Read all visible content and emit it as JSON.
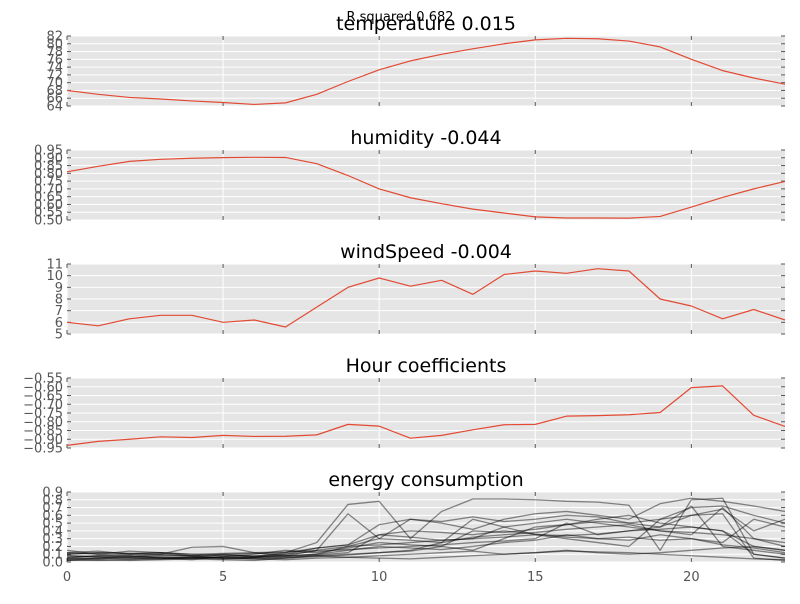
{
  "figure_title": "R squared 0.682",
  "colors": {
    "panel_background": "#e5e5e5",
    "grid": "#ffffff",
    "line": "#e24a33",
    "multi_line": "#000000",
    "tick_text": "#555555",
    "title_text": "#000000"
  },
  "chart_data": [
    {
      "type": "line",
      "title": "temperature 0.015",
      "x": [
        0,
        1,
        2,
        3,
        4,
        5,
        6,
        7,
        8,
        9,
        10,
        11,
        12,
        13,
        14,
        15,
        16,
        17,
        18,
        19,
        20,
        21,
        22,
        23
      ],
      "series": [
        {
          "values": [
            68.0,
            67.0,
            66.2,
            65.8,
            65.3,
            64.9,
            64.4,
            64.8,
            67.0,
            70.3,
            73.3,
            75.6,
            77.3,
            78.7,
            80.0,
            81.0,
            81.4,
            81.3,
            80.7,
            79.2,
            76.0,
            73.1,
            71.2,
            69.6
          ]
        }
      ],
      "xlim": [
        0,
        23
      ],
      "ylim": [
        64,
        82
      ],
      "xticks": [
        0,
        5,
        10,
        15,
        20
      ],
      "xtick_labels": [
        "",
        "",
        "",
        "",
        ""
      ],
      "yticks": [
        64,
        66,
        68,
        70,
        72,
        74,
        76,
        78,
        80,
        82
      ],
      "ytick_labels": [
        "64",
        "66",
        "68",
        "70",
        "72",
        "74",
        "76",
        "78",
        "80",
        "82"
      ],
      "grid": true
    },
    {
      "type": "line",
      "title": "humidity -0.044",
      "x": [
        0,
        1,
        2,
        3,
        4,
        5,
        6,
        7,
        8,
        9,
        10,
        11,
        12,
        13,
        14,
        15,
        16,
        17,
        18,
        19,
        20,
        21,
        22,
        23
      ],
      "series": [
        {
          "values": [
            0.81,
            0.845,
            0.877,
            0.89,
            0.897,
            0.901,
            0.903,
            0.902,
            0.862,
            0.786,
            0.7,
            0.643,
            0.605,
            0.57,
            0.545,
            0.52,
            0.513,
            0.513,
            0.512,
            0.523,
            0.583,
            0.645,
            0.7,
            0.748
          ]
        }
      ],
      "xlim": [
        0,
        23
      ],
      "ylim": [
        0.5,
        0.95
      ],
      "xticks": [
        0,
        5,
        10,
        15,
        20
      ],
      "xtick_labels": [
        "",
        "",
        "",
        "",
        ""
      ],
      "yticks": [
        0.5,
        0.55,
        0.6,
        0.65,
        0.7,
        0.75,
        0.8,
        0.85,
        0.9,
        0.95
      ],
      "ytick_labels": [
        "0.50",
        "0.55",
        "0.60",
        "0.65",
        "0.70",
        "0.75",
        "0.80",
        "0.85",
        "0.90",
        "0.95"
      ],
      "grid": true
    },
    {
      "type": "line",
      "title": "windSpeed -0.004",
      "x": [
        0,
        1,
        2,
        3,
        4,
        5,
        6,
        7,
        8,
        9,
        10,
        11,
        12,
        13,
        14,
        15,
        16,
        17,
        18,
        19,
        20,
        21,
        22,
        23
      ],
      "series": [
        {
          "values": [
            6.0,
            5.7,
            6.3,
            6.6,
            6.6,
            6.0,
            6.2,
            5.6,
            7.3,
            9.0,
            9.8,
            9.1,
            9.6,
            8.4,
            10.1,
            10.4,
            10.2,
            10.6,
            10.4,
            8.0,
            7.4,
            6.3,
            7.1,
            6.2
          ]
        }
      ],
      "xlim": [
        0,
        23
      ],
      "ylim": [
        5,
        11
      ],
      "xticks": [
        0,
        5,
        10,
        15,
        20
      ],
      "xtick_labels": [
        "",
        "",
        "",
        "",
        ""
      ],
      "yticks": [
        5,
        6,
        7,
        8,
        9,
        10,
        11
      ],
      "ytick_labels": [
        "5",
        "6",
        "7",
        "8",
        "9",
        "10",
        "11"
      ],
      "grid": true
    },
    {
      "type": "line",
      "title": "Hour coefficients",
      "x": [
        0,
        1,
        2,
        3,
        4,
        5,
        6,
        7,
        8,
        9,
        10,
        11,
        12,
        13,
        14,
        15,
        16,
        17,
        18,
        19,
        20,
        21,
        22,
        23
      ],
      "series": [
        {
          "values": [
            -0.935,
            -0.912,
            -0.9,
            -0.886,
            -0.89,
            -0.878,
            -0.884,
            -0.883,
            -0.875,
            -0.815,
            -0.825,
            -0.894,
            -0.878,
            -0.846,
            -0.817,
            -0.815,
            -0.768,
            -0.765,
            -0.76,
            -0.747,
            -0.605,
            -0.595,
            -0.763,
            -0.827
          ]
        }
      ],
      "xlim": [
        0,
        23
      ],
      "ylim": [
        -0.95,
        -0.55
      ],
      "xticks": [
        0,
        5,
        10,
        15,
        20
      ],
      "xtick_labels": [
        "",
        "",
        "",
        "",
        ""
      ],
      "yticks": [
        -0.95,
        -0.9,
        -0.85,
        -0.8,
        -0.75,
        -0.7,
        -0.65,
        -0.6,
        -0.55
      ],
      "ytick_labels": [
        "−0.95",
        "−0.90",
        "−0.85",
        "−0.80",
        "−0.75",
        "−0.70",
        "−0.65",
        "−0.60",
        "−0.55"
      ],
      "grid": true
    },
    {
      "type": "line",
      "title": "energy consumption",
      "x": [
        0,
        1,
        2,
        3,
        4,
        5,
        6,
        7,
        8,
        9,
        10,
        11,
        12,
        13,
        14,
        15,
        16,
        17,
        18,
        19,
        20,
        21,
        22,
        23
      ],
      "series": [
        {
          "values": [
            0.1,
            0.12,
            0.11,
            0.1,
            0.08,
            0.1,
            0.07,
            0.12,
            0.25,
            0.74,
            0.78,
            0.3,
            0.65,
            0.81,
            0.81,
            0.8,
            0.78,
            0.77,
            0.73,
            0.15,
            0.8,
            0.82,
            0.1,
            0.05
          ]
        },
        {
          "values": [
            0.05,
            0.08,
            0.07,
            0.1,
            0.19,
            0.2,
            0.12,
            0.08,
            0.15,
            0.62,
            0.3,
            0.55,
            0.5,
            0.42,
            0.55,
            0.62,
            0.65,
            0.6,
            0.55,
            0.75,
            0.82,
            0.78,
            0.72,
            0.65
          ]
        },
        {
          "values": [
            0.15,
            0.1,
            0.14,
            0.12,
            0.08,
            0.05,
            0.06,
            0.1,
            0.18,
            0.22,
            0.48,
            0.55,
            0.52,
            0.58,
            0.52,
            0.55,
            0.6,
            0.58,
            0.5,
            0.45,
            0.6,
            0.68,
            0.4,
            0.55
          ]
        },
        {
          "values": [
            0.02,
            0.05,
            0.08,
            0.05,
            0.03,
            0.07,
            0.1,
            0.15,
            0.12,
            0.18,
            0.25,
            0.22,
            0.2,
            0.15,
            0.3,
            0.45,
            0.48,
            0.52,
            0.5,
            0.55,
            0.6,
            0.62,
            0.05,
            0.02
          ]
        },
        {
          "values": [
            0.12,
            0.14,
            0.1,
            0.12,
            0.1,
            0.08,
            0.07,
            0.08,
            0.1,
            0.2,
            0.3,
            0.28,
            0.25,
            0.32,
            0.35,
            0.38,
            0.42,
            0.45,
            0.48,
            0.4,
            0.35,
            0.7,
            0.3,
            0.2
          ]
        },
        {
          "values": [
            0.08,
            0.06,
            0.05,
            0.04,
            0.06,
            0.09,
            0.08,
            0.1,
            0.14,
            0.16,
            0.18,
            0.2,
            0.22,
            0.25,
            0.27,
            0.3,
            0.5,
            0.35,
            0.4,
            0.45,
            0.72,
            0.2,
            0.15,
            0.1
          ]
        },
        {
          "values": [
            0.05,
            0.04,
            0.06,
            0.08,
            0.07,
            0.05,
            0.06,
            0.07,
            0.09,
            0.12,
            0.35,
            0.4,
            0.38,
            0.35,
            0.4,
            0.36,
            0.32,
            0.3,
            0.28,
            0.35,
            0.3,
            0.25,
            0.55,
            0.45
          ]
        },
        {
          "values": [
            0.03,
            0.02,
            0.03,
            0.04,
            0.05,
            0.06,
            0.04,
            0.03,
            0.05,
            0.06,
            0.08,
            0.1,
            0.12,
            0.14,
            0.1,
            0.12,
            0.14,
            0.13,
            0.12,
            0.1,
            0.08,
            0.06,
            0.04,
            0.03
          ]
        },
        {
          "values": [
            0.1,
            0.12,
            0.11,
            0.12,
            0.1,
            0.11,
            0.12,
            0.13,
            0.15,
            0.2,
            0.22,
            0.25,
            0.28,
            0.3,
            0.32,
            0.35,
            0.34,
            0.36,
            0.4,
            0.42,
            0.45,
            0.4,
            0.2,
            0.15
          ]
        },
        {
          "values": [
            0.06,
            0.08,
            0.1,
            0.09,
            0.08,
            0.1,
            0.11,
            0.12,
            0.18,
            0.22,
            0.35,
            0.32,
            0.28,
            0.3,
            0.45,
            0.5,
            0.55,
            0.5,
            0.45,
            0.4,
            0.38,
            0.35,
            0.3,
            0.25
          ]
        },
        {
          "values": [
            0.02,
            0.03,
            0.02,
            0.03,
            0.04,
            0.03,
            0.02,
            0.05,
            0.08,
            0.06,
            0.05,
            0.04,
            0.06,
            0.08,
            0.1,
            0.12,
            0.15,
            0.12,
            0.1,
            0.12,
            0.15,
            0.18,
            0.2,
            0.15
          ]
        },
        {
          "values": [
            0.12,
            0.1,
            0.08,
            0.06,
            0.05,
            0.04,
            0.05,
            0.06,
            0.08,
            0.1,
            0.12,
            0.15,
            0.25,
            0.55,
            0.45,
            0.35,
            0.3,
            0.25,
            0.2,
            0.55,
            0.7,
            0.72,
            0.6,
            0.5
          ]
        },
        {
          "values": [
            0.04,
            0.05,
            0.04,
            0.06,
            0.05,
            0.07,
            0.06,
            0.08,
            0.1,
            0.15,
            0.2,
            0.18,
            0.16,
            0.2,
            0.25,
            0.28,
            0.35,
            0.3,
            0.32,
            0.28,
            0.3,
            0.22,
            0.18,
            0.12
          ]
        },
        {
          "values": [
            0.08,
            0.07,
            0.06,
            0.05,
            0.06,
            0.05,
            0.04,
            0.05,
            0.07,
            0.09,
            0.12,
            0.14,
            0.2,
            0.4,
            0.38,
            0.42,
            0.48,
            0.55,
            0.6,
            0.5,
            0.45,
            0.4,
            0.1,
            0.05
          ]
        }
      ],
      "xlim": [
        0,
        23
      ],
      "ylim": [
        0.0,
        0.9
      ],
      "xticks": [
        0,
        5,
        10,
        15,
        20
      ],
      "xtick_labels": [
        "0",
        "5",
        "10",
        "15",
        "20"
      ],
      "yticks": [
        0.0,
        0.1,
        0.2,
        0.3,
        0.4,
        0.5,
        0.6,
        0.7,
        0.8,
        0.9
      ],
      "ytick_labels": [
        "0.0",
        "0.1",
        "0.2",
        "0.3",
        "0.4",
        "0.5",
        "0.6",
        "0.7",
        "0.8",
        "0.9"
      ],
      "grid": true
    }
  ]
}
